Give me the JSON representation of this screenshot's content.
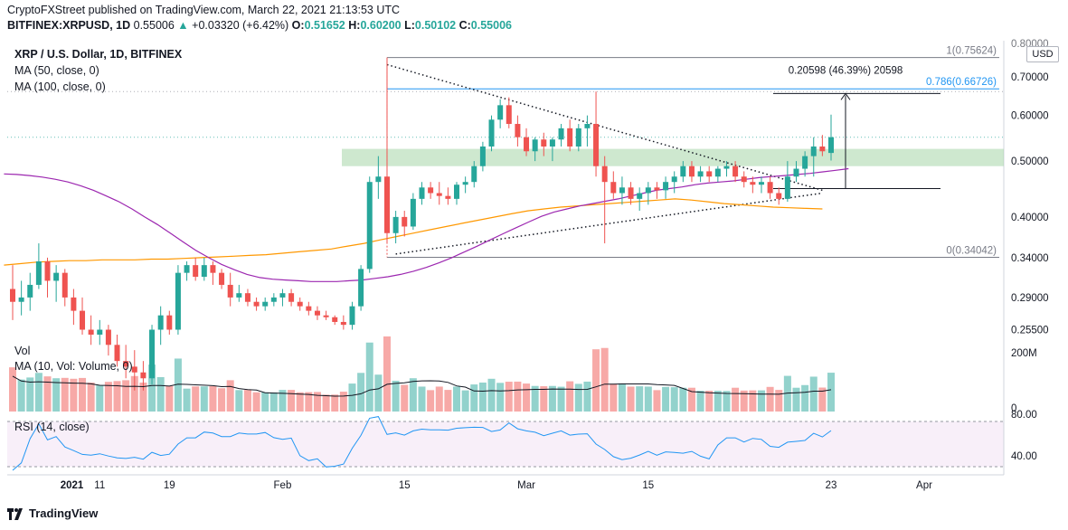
{
  "header": {
    "publisher": "CryptoFXStreet published on TradingView.com, March 22, 2021 21:13:53 UTC",
    "symbol": "BITFINEX:XRPUSD, 1D",
    "price": "0.55006",
    "change": "+0.03320 (+6.42%)",
    "open_label": "O:",
    "open": "0.51652",
    "high_label": "H:",
    "high": "0.60200",
    "low_label": "L:",
    "low": "0.50102",
    "close_label": "C:",
    "close": "0.55006"
  },
  "legend": {
    "title": "XRP / U.S. Dollar, 1D, BITFINEX",
    "ma50": "MA (50, close, 0)",
    "ma100": "MA (100, close, 0)",
    "vol": "Vol",
    "vol_ma": "MA (10, Vol: Volume, 0)",
    "rsi": "RSI (14, close)"
  },
  "currency": "USD",
  "brand": "TradingView",
  "chart_data": {
    "type": "candlestick",
    "y_scale": "log",
    "y_ticks": [
      "0.70000",
      "0.60000",
      "0.50000",
      "0.40000",
      "0.34000",
      "0.29000",
      "0.25500"
    ],
    "y_top_partial": "0.80000",
    "x_ticks": [
      "2021",
      "11",
      "19",
      "Feb",
      "15",
      "Mar",
      "15",
      "23",
      "Apr"
    ],
    "fib_levels": [
      {
        "label": "1(0.75624)",
        "value": 0.75624
      },
      {
        "label": "0.786(0.66726)",
        "value": 0.66726
      },
      {
        "label": "0(0.34042)",
        "value": 0.34042
      }
    ],
    "measure_label": "0.20598 (46.39%) 20598",
    "volume_ticks": [
      "200M",
      "0"
    ],
    "rsi_ticks": [
      "80.00",
      "40.00"
    ],
    "colors": {
      "up": "#26a69a",
      "down": "#ef5350",
      "ma50": "#9c27b0",
      "ma100": "#ff9800",
      "fib": "#787b86",
      "fib786": "#2196f3",
      "rsi": "#2196f3",
      "zone": "#a5d6a7"
    },
    "candles": [
      [
        0.3,
        0.33,
        0.265,
        0.285
      ],
      [
        0.285,
        0.31,
        0.27,
        0.29
      ],
      [
        0.29,
        0.32,
        0.275,
        0.305
      ],
      [
        0.305,
        0.36,
        0.3,
        0.335
      ],
      [
        0.335,
        0.34,
        0.29,
        0.31
      ],
      [
        0.31,
        0.33,
        0.285,
        0.32
      ],
      [
        0.32,
        0.325,
        0.28,
        0.29
      ],
      [
        0.29,
        0.3,
        0.26,
        0.275
      ],
      [
        0.275,
        0.29,
        0.25,
        0.255
      ],
      [
        0.255,
        0.27,
        0.24,
        0.25
      ],
      [
        0.25,
        0.265,
        0.24,
        0.255
      ],
      [
        0.255,
        0.26,
        0.23,
        0.24
      ],
      [
        0.24,
        0.25,
        0.22,
        0.225
      ],
      [
        0.225,
        0.24,
        0.21,
        0.22
      ],
      [
        0.22,
        0.235,
        0.2,
        0.215
      ],
      [
        0.215,
        0.225,
        0.2,
        0.21
      ],
      [
        0.21,
        0.26,
        0.205,
        0.255
      ],
      [
        0.255,
        0.28,
        0.24,
        0.27
      ],
      [
        0.27,
        0.275,
        0.25,
        0.255
      ],
      [
        0.255,
        0.33,
        0.25,
        0.32
      ],
      [
        0.32,
        0.335,
        0.31,
        0.33
      ],
      [
        0.33,
        0.34,
        0.31,
        0.315
      ],
      [
        0.315,
        0.34,
        0.31,
        0.33
      ],
      [
        0.33,
        0.335,
        0.305,
        0.32
      ],
      [
        0.32,
        0.325,
        0.3,
        0.305
      ],
      [
        0.305,
        0.32,
        0.28,
        0.29
      ],
      [
        0.29,
        0.305,
        0.285,
        0.295
      ],
      [
        0.295,
        0.3,
        0.28,
        0.285
      ],
      [
        0.285,
        0.29,
        0.275,
        0.28
      ],
      [
        0.28,
        0.29,
        0.275,
        0.285
      ],
      [
        0.285,
        0.295,
        0.28,
        0.29
      ],
      [
        0.29,
        0.3,
        0.28,
        0.295
      ],
      [
        0.295,
        0.3,
        0.28,
        0.285
      ],
      [
        0.285,
        0.29,
        0.275,
        0.28
      ],
      [
        0.28,
        0.285,
        0.27,
        0.275
      ],
      [
        0.275,
        0.28,
        0.265,
        0.27
      ],
      [
        0.27,
        0.275,
        0.265,
        0.268
      ],
      [
        0.268,
        0.27,
        0.26,
        0.263
      ],
      [
        0.263,
        0.27,
        0.255,
        0.26
      ],
      [
        0.26,
        0.285,
        0.255,
        0.28
      ],
      [
        0.28,
        0.33,
        0.275,
        0.325
      ],
      [
        0.325,
        0.47,
        0.32,
        0.46
      ],
      [
        0.46,
        0.51,
        0.43,
        0.47
      ],
      [
        0.47,
        0.756,
        0.36,
        0.375
      ],
      [
        0.375,
        0.41,
        0.36,
        0.4
      ],
      [
        0.4,
        0.41,
        0.37,
        0.385
      ],
      [
        0.385,
        0.44,
        0.38,
        0.43
      ],
      [
        0.43,
        0.46,
        0.42,
        0.45
      ],
      [
        0.45,
        0.46,
        0.43,
        0.44
      ],
      [
        0.44,
        0.46,
        0.42,
        0.435
      ],
      [
        0.435,
        0.45,
        0.42,
        0.43
      ],
      [
        0.43,
        0.46,
        0.42,
        0.455
      ],
      [
        0.455,
        0.47,
        0.44,
        0.46
      ],
      [
        0.46,
        0.5,
        0.45,
        0.49
      ],
      [
        0.49,
        0.54,
        0.48,
        0.53
      ],
      [
        0.53,
        0.6,
        0.52,
        0.59
      ],
      [
        0.59,
        0.64,
        0.57,
        0.625
      ],
      [
        0.625,
        0.645,
        0.57,
        0.58
      ],
      [
        0.58,
        0.6,
        0.53,
        0.55
      ],
      [
        0.55,
        0.57,
        0.51,
        0.52
      ],
      [
        0.52,
        0.55,
        0.5,
        0.545
      ],
      [
        0.545,
        0.56,
        0.51,
        0.53
      ],
      [
        0.53,
        0.55,
        0.5,
        0.545
      ],
      [
        0.545,
        0.58,
        0.53,
        0.57
      ],
      [
        0.57,
        0.59,
        0.52,
        0.53
      ],
      [
        0.53,
        0.58,
        0.52,
        0.57
      ],
      [
        0.57,
        0.6,
        0.53,
        0.58
      ],
      [
        0.58,
        0.66,
        0.47,
        0.49
      ],
      [
        0.49,
        0.51,
        0.36,
        0.46
      ],
      [
        0.46,
        0.48,
        0.43,
        0.44
      ],
      [
        0.44,
        0.47,
        0.42,
        0.45
      ],
      [
        0.45,
        0.46,
        0.42,
        0.43
      ],
      [
        0.43,
        0.45,
        0.41,
        0.44
      ],
      [
        0.44,
        0.46,
        0.42,
        0.45
      ],
      [
        0.45,
        0.46,
        0.43,
        0.445
      ],
      [
        0.445,
        0.47,
        0.43,
        0.46
      ],
      [
        0.46,
        0.48,
        0.44,
        0.47
      ],
      [
        0.47,
        0.5,
        0.46,
        0.49
      ],
      [
        0.49,
        0.5,
        0.46,
        0.47
      ],
      [
        0.47,
        0.49,
        0.46,
        0.48
      ],
      [
        0.48,
        0.49,
        0.46,
        0.47
      ],
      [
        0.47,
        0.49,
        0.46,
        0.485
      ],
      [
        0.485,
        0.5,
        0.47,
        0.49
      ],
      [
        0.49,
        0.5,
        0.46,
        0.47
      ],
      [
        0.47,
        0.48,
        0.45,
        0.46
      ],
      [
        0.46,
        0.47,
        0.44,
        0.455
      ],
      [
        0.455,
        0.47,
        0.44,
        0.46
      ],
      [
        0.46,
        0.47,
        0.43,
        0.44
      ],
      [
        0.44,
        0.45,
        0.42,
        0.43
      ],
      [
        0.43,
        0.5,
        0.425,
        0.47
      ],
      [
        0.47,
        0.5,
        0.46,
        0.485
      ],
      [
        0.485,
        0.52,
        0.47,
        0.51
      ],
      [
        0.51,
        0.55,
        0.47,
        0.53
      ],
      [
        0.53,
        0.555,
        0.51,
        0.52
      ],
      [
        0.51652,
        0.602,
        0.50102,
        0.55006
      ]
    ],
    "ma50": [
      0.475,
      0.474,
      0.472,
      0.469,
      0.465,
      0.46,
      0.453,
      0.445,
      0.435,
      0.425,
      0.413,
      0.4,
      0.388,
      0.375,
      0.362,
      0.35,
      0.34,
      0.331,
      0.324,
      0.318,
      0.314,
      0.312,
      0.311,
      0.31,
      0.309,
      0.309,
      0.309,
      0.31,
      0.311,
      0.313,
      0.315,
      0.318,
      0.322,
      0.327,
      0.333,
      0.34,
      0.348,
      0.356,
      0.365,
      0.374,
      0.383,
      0.392,
      0.401,
      0.408,
      0.413,
      0.418,
      0.422,
      0.426,
      0.43,
      0.435,
      0.44,
      0.445,
      0.448,
      0.451,
      0.455,
      0.458,
      0.46,
      0.462,
      0.465,
      0.468,
      0.47,
      0.472,
      0.474,
      0.476,
      0.479,
      0.482,
      0.485
    ],
    "ma100": [
      0.33,
      0.332,
      0.334,
      0.335,
      0.336,
      0.336,
      0.337,
      0.337,
      0.337,
      0.338,
      0.338,
      0.339,
      0.34,
      0.341,
      0.342,
      0.343,
      0.344,
      0.346,
      0.348,
      0.35,
      0.352,
      0.356,
      0.36,
      0.365,
      0.37,
      0.375,
      0.38,
      0.385,
      0.39,
      0.395,
      0.4,
      0.405,
      0.41,
      0.413,
      0.416,
      0.418,
      0.42,
      0.422,
      0.424,
      0.426,
      0.428,
      0.43,
      0.428,
      0.425,
      0.422,
      0.42,
      0.418,
      0.416,
      0.415,
      0.414,
      0.413
    ]
  }
}
